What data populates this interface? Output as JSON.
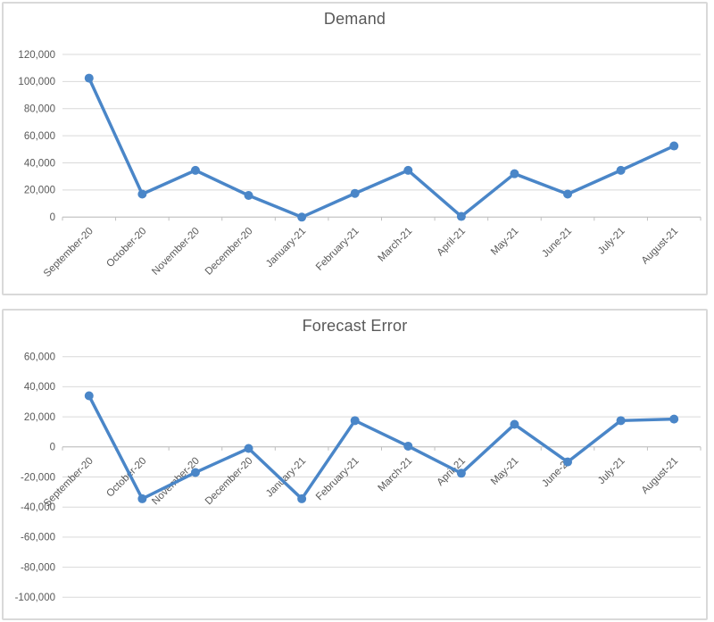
{
  "colors": {
    "series_line": "#4A86C8",
    "gridline": "#D9D9D9",
    "axis_line": "#BFBFBF",
    "text": "#595959",
    "panel_border": "#D9D9D9",
    "background": "#FFFFFF"
  },
  "chart_data": [
    {
      "type": "line",
      "title": "Demand",
      "categories": [
        "September-20",
        "October-20",
        "November-20",
        "December-20",
        "January-21",
        "February-21",
        "March-21",
        "April-21",
        "May-21",
        "June-21",
        "July-21",
        "August-21"
      ],
      "values": [
        102500,
        17000,
        34500,
        16000,
        0,
        17500,
        34500,
        500,
        32000,
        17000,
        34500,
        52500
      ],
      "ylim": [
        0,
        120000
      ],
      "ytick_step": 20000,
      "ytick_labels": [
        "0",
        "20,000",
        "40,000",
        "60,000",
        "80,000",
        "100,000",
        "120,000"
      ],
      "xlabel": "",
      "ylabel": "",
      "grid": true,
      "legend_position": "none",
      "marker": "circle",
      "number_format": "#,##0"
    },
    {
      "type": "line",
      "title": "Forecast Error",
      "categories": [
        "September-20",
        "October-20",
        "November-20",
        "December-20",
        "January-21",
        "February-21",
        "March-21",
        "April-21",
        "May-21",
        "June-21",
        "July-21",
        "August-21"
      ],
      "values": [
        34000,
        -34500,
        -17000,
        -1000,
        -34500,
        17500,
        500,
        -17500,
        15000,
        -10000,
        17500,
        18500
      ],
      "ylim": [
        -100000,
        60000
      ],
      "ytick_step": 20000,
      "ytick_labels": [
        "-100,000",
        "-80,000",
        "-60,000",
        "-40,000",
        "-20,000",
        "0",
        "20,000",
        "40,000",
        "60,000"
      ],
      "xlabel": "",
      "ylabel": "",
      "grid": true,
      "legend_position": "none",
      "marker": "circle",
      "number_format": "#,##0"
    }
  ]
}
